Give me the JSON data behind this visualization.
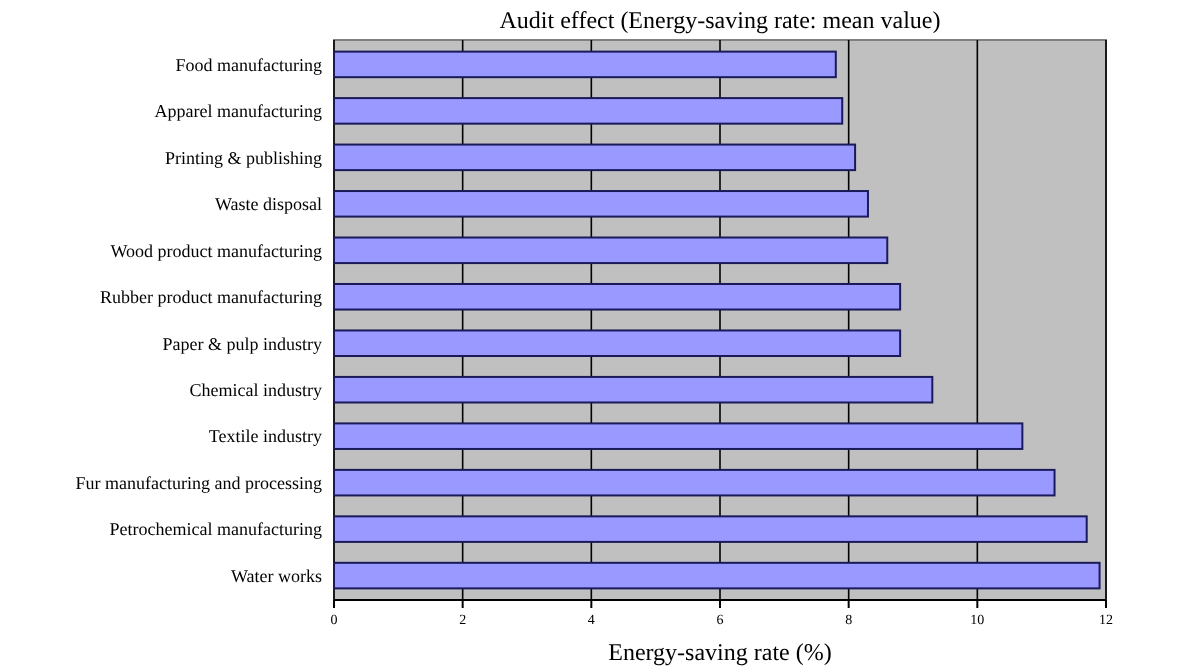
{
  "chart_data": {
    "type": "bar",
    "orientation": "horizontal",
    "title": "Audit effect (Energy-saving rate: mean value)",
    "xlabel": "Energy-saving rate (%)",
    "categories": [
      "Food manufacturing",
      "Apparel manufacturing",
      "Printing & publishing",
      "Waste disposal",
      "Wood product manufacturing",
      "Rubber product manufacturing",
      "Paper & pulp industry",
      "Chemical industry",
      "Textile industry",
      "Fur manufacturing and processing",
      "Petrochemical manufacturing",
      "Water works"
    ],
    "values": [
      7.8,
      7.9,
      8.1,
      8.3,
      8.6,
      8.8,
      8.8,
      9.3,
      10.7,
      11.2,
      11.7,
      11.9
    ],
    "color": "#9999ff",
    "xlim": [
      0,
      12
    ],
    "xticks": [
      0,
      2,
      4,
      6,
      8,
      10,
      12
    ],
    "grid": "x"
  }
}
